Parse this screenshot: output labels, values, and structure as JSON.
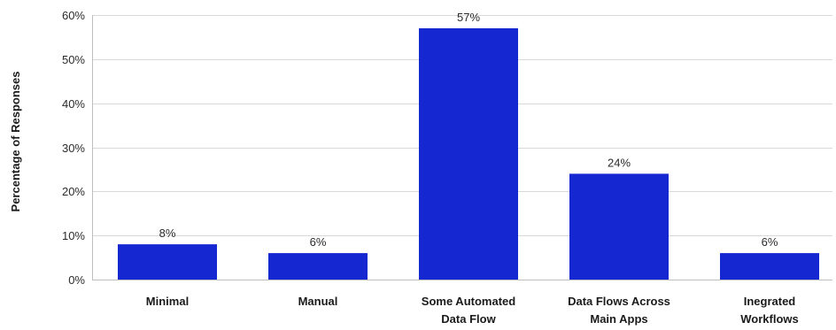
{
  "chart_data": {
    "type": "bar",
    "title": "",
    "xlabel": "",
    "ylabel": "Percentage of Responses",
    "ylim": [
      0,
      60
    ],
    "yticks": [
      "0%",
      "10%",
      "20%",
      "30%",
      "40%",
      "50%",
      "60%"
    ],
    "ytick_values": [
      0,
      10,
      20,
      30,
      40,
      50,
      60
    ],
    "categories": [
      [
        "Minimal"
      ],
      [
        "Manual"
      ],
      [
        "Some Automated",
        "Data Flow"
      ],
      [
        "Data Flows Across",
        "Main Apps"
      ],
      [
        "Inegrated",
        "Workflows"
      ]
    ],
    "values": [
      8,
      6,
      57,
      24,
      6
    ],
    "data_labels": [
      "8%",
      "6%",
      "57%",
      "24%",
      "6%"
    ],
    "grid": true,
    "legend": "none",
    "bar_color": "#1427d0"
  }
}
